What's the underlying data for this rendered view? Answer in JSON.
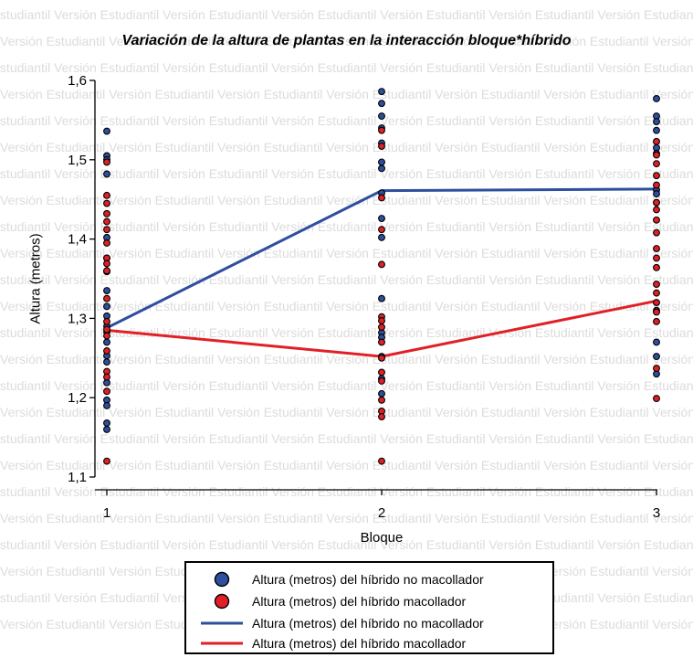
{
  "watermark_text": "Versión Estudiantil",
  "chart_data": {
    "type": "scatter",
    "title": "Variación de la altura de plantas en la interacción bloque*híbrido",
    "xlabel": "Bloque",
    "ylabel": "Altura (metros)",
    "categories": [
      "1",
      "2",
      "3"
    ],
    "ylim": [
      1.1,
      1.6
    ],
    "yticks": [
      "1,1",
      "1,2",
      "1,3",
      "1,4",
      "1,5",
      "1,6"
    ],
    "colors": {
      "no_macollador": "#2e4f9e",
      "macollador": "#e02026"
    },
    "series": [
      {
        "name": "Altura (metros) del híbrido no macollador",
        "kind": "points",
        "color": "#2e4f9e",
        "points": [
          [
            1,
            1.536
          ],
          [
            1,
            1.505
          ],
          [
            1,
            1.5
          ],
          [
            1,
            1.482
          ],
          [
            1,
            1.402
          ],
          [
            1,
            1.376
          ],
          [
            1,
            1.359
          ],
          [
            1,
            1.335
          ],
          [
            1,
            1.315
          ],
          [
            1,
            1.303
          ],
          [
            1,
            1.29
          ],
          [
            1,
            1.283
          ],
          [
            1,
            1.27
          ],
          [
            1,
            1.253
          ],
          [
            1,
            1.245
          ],
          [
            1,
            1.219
          ],
          [
            1,
            1.197
          ],
          [
            1,
            1.19
          ],
          [
            1,
            1.168
          ],
          [
            1,
            1.16
          ],
          [
            2,
            1.586
          ],
          [
            2,
            1.571
          ],
          [
            2,
            1.555
          ],
          [
            2,
            1.54
          ],
          [
            2,
            1.521
          ],
          [
            2,
            1.497
          ],
          [
            2,
            1.489
          ],
          [
            2,
            1.458
          ],
          [
            2,
            1.426
          ],
          [
            2,
            1.402
          ],
          [
            2,
            1.325
          ],
          [
            2,
            1.282
          ],
          [
            2,
            1.276
          ],
          [
            2,
            1.252
          ],
          [
            2,
            1.224
          ],
          [
            2,
            1.205
          ],
          [
            3,
            1.577
          ],
          [
            3,
            1.555
          ],
          [
            3,
            1.548
          ],
          [
            3,
            1.537
          ],
          [
            3,
            1.515
          ],
          [
            3,
            1.508
          ],
          [
            3,
            1.462
          ],
          [
            3,
            1.457
          ],
          [
            3,
            1.446
          ],
          [
            3,
            1.31
          ],
          [
            3,
            1.27
          ],
          [
            3,
            1.252
          ],
          [
            3,
            1.23
          ]
        ]
      },
      {
        "name": "Altura (metros) del híbrido macollador",
        "kind": "points",
        "color": "#e02026",
        "points": [
          [
            1,
            1.497
          ],
          [
            1,
            1.455
          ],
          [
            1,
            1.445
          ],
          [
            1,
            1.432
          ],
          [
            1,
            1.422
          ],
          [
            1,
            1.412
          ],
          [
            1,
            1.395
          ],
          [
            1,
            1.376
          ],
          [
            1,
            1.369
          ],
          [
            1,
            1.36
          ],
          [
            1,
            1.325
          ],
          [
            1,
            1.296
          ],
          [
            1,
            1.286
          ],
          [
            1,
            1.278
          ],
          [
            1,
            1.259
          ],
          [
            1,
            1.233
          ],
          [
            1,
            1.226
          ],
          [
            1,
            1.208
          ],
          [
            1,
            1.12
          ],
          [
            2,
            1.537
          ],
          [
            2,
            1.517
          ],
          [
            2,
            1.452
          ],
          [
            2,
            1.412
          ],
          [
            2,
            1.368
          ],
          [
            2,
            1.302
          ],
          [
            2,
            1.297
          ],
          [
            2,
            1.289
          ],
          [
            2,
            1.27
          ],
          [
            2,
            1.25
          ],
          [
            2,
            1.232
          ],
          [
            2,
            1.221
          ],
          [
            2,
            1.197
          ],
          [
            2,
            1.183
          ],
          [
            2,
            1.176
          ],
          [
            2,
            1.12
          ],
          [
            3,
            1.523
          ],
          [
            3,
            1.506
          ],
          [
            3,
            1.495
          ],
          [
            3,
            1.48
          ],
          [
            3,
            1.468
          ],
          [
            3,
            1.446
          ],
          [
            3,
            1.437
          ],
          [
            3,
            1.424
          ],
          [
            3,
            1.408
          ],
          [
            3,
            1.388
          ],
          [
            3,
            1.376
          ],
          [
            3,
            1.364
          ],
          [
            3,
            1.343
          ],
          [
            3,
            1.332
          ],
          [
            3,
            1.32
          ],
          [
            3,
            1.308
          ],
          [
            3,
            1.296
          ],
          [
            3,
            1.237
          ],
          [
            3,
            1.199
          ]
        ]
      },
      {
        "name": "Altura (metros) del híbrido no macollador",
        "kind": "line",
        "color": "#2e4f9e",
        "points": [
          [
            1,
            1.288
          ],
          [
            2,
            1.461
          ],
          [
            3,
            1.463
          ]
        ]
      },
      {
        "name": "Altura (metros) del híbrido macollador",
        "kind": "line",
        "color": "#e02026",
        "points": [
          [
            1,
            1.285
          ],
          [
            2,
            1.252
          ],
          [
            3,
            1.322
          ]
        ]
      }
    ]
  },
  "legend": {
    "items": [
      {
        "label": "Altura (metros) del híbrido no macollador",
        "type": "dot",
        "color": "#2e4f9e"
      },
      {
        "label": "Altura (metros) del híbrido macollador",
        "type": "dot",
        "color": "#e02026"
      },
      {
        "label": "Altura (metros) del híbrido no macollador",
        "type": "line",
        "color": "#2e4f9e"
      },
      {
        "label": "Altura (metros) del híbrido macollador",
        "type": "line",
        "color": "#e02026"
      }
    ]
  }
}
